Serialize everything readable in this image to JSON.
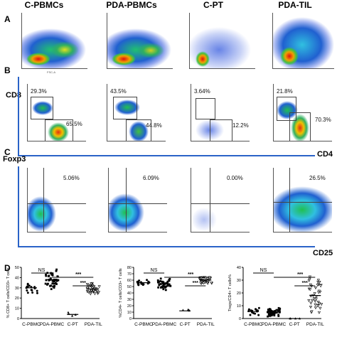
{
  "column_headers": [
    "C-PBMCs",
    "PDA-PBMCs",
    "C-PT",
    "PDA-TIL"
  ],
  "panel_letters": {
    "a": "A",
    "b": "B",
    "c": "C",
    "d": "D"
  },
  "row_b": {
    "ylabel": "CD8",
    "xlabel": "CD4",
    "percentages": [
      {
        "upper": "29.3%",
        "lower": "65.5%"
      },
      {
        "upper": "43.5%",
        "lower": "44.8%"
      },
      {
        "upper": "3.64%",
        "lower": "12.2%"
      },
      {
        "upper": "21.8%",
        "lower": "70.3%"
      }
    ]
  },
  "row_c": {
    "ylabel": "Foxp3",
    "xlabel": "CD25",
    "percentages": [
      "5.06%",
      "6.09%",
      "0.00%",
      "26.5%"
    ]
  },
  "tiny_axis": {
    "fsc": "FSC-A",
    "ssc": "SSC-A",
    "fitc": "FITC-A",
    "pe": "PE-A",
    "percp": "PerCP-Cy5-5-A",
    "apc": "APC-A"
  },
  "significance": {
    "ns": "NS",
    "stars": "***"
  },
  "chart_data": [
    {
      "type": "scatter",
      "ylabel": "% CD8+ T cells/CD3+ T cells",
      "categories": [
        "C-PBMC",
        "PDA-PBMC",
        "C-PT",
        "PDA-TIL"
      ],
      "yticks": [
        0,
        10,
        20,
        30,
        40,
        50
      ],
      "ylim": [
        0,
        50
      ],
      "means": [
        30,
        38,
        4,
        29
      ],
      "annotations": [
        "NS",
        "***",
        "***"
      ]
    },
    {
      "type": "scatter",
      "ylabel": "%CD4+ T cells/CD3+ T cells",
      "categories": [
        "C-PBMC",
        "PDA-PBMC",
        "C-PT",
        "PDA-TIL"
      ],
      "yticks": [
        0,
        10,
        20,
        30,
        40,
        50,
        60,
        70,
        80
      ],
      "ylim": [
        0,
        80
      ],
      "means": [
        56,
        54,
        12,
        60
      ],
      "annotations": [
        "NS",
        "***",
        "***"
      ]
    },
    {
      "type": "scatter",
      "ylabel": "Tregs/CD4+ T cells%",
      "categories": [
        "C-PBMC",
        "PDA-PBMC",
        "C-PT",
        "PDA-TIL"
      ],
      "yticks": [
        0,
        10,
        20,
        30,
        40
      ],
      "ylim": [
        0,
        40
      ],
      "means": [
        5.5,
        5,
        0,
        18
      ],
      "annotations": [
        "NS",
        "***",
        "***"
      ]
    }
  ]
}
